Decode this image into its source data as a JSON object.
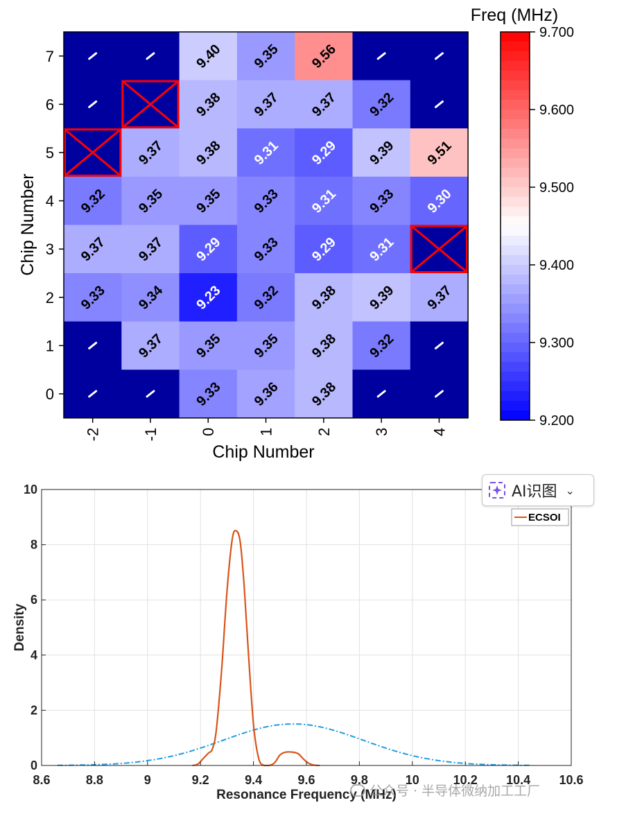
{
  "chart_data": [
    {
      "type": "heatmap",
      "colorbar_title": "Freq (MHz)",
      "xlabel": "Chip Number",
      "ylabel": "Chip Number",
      "x_categories": [
        "-2",
        "-1",
        "0",
        "1",
        "2",
        "3",
        "4"
      ],
      "y_categories": [
        "0",
        "1",
        "2",
        "3",
        "4",
        "5",
        "6",
        "7"
      ],
      "colorbar_ticks": [
        "9.700",
        "9.600",
        "9.500",
        "9.400",
        "9.300",
        "9.200"
      ],
      "color_range": [
        9.2,
        9.7
      ],
      "colors": {
        "low": "#0000ff",
        "mid": "#ffffff",
        "high": "#ff0000",
        "missing": "#00009e",
        "defect": "#ff0000",
        "missing_mark": "#ffffff"
      },
      "missing_label": "-",
      "rows_top_to_bottom": [
        {
          "y": "7",
          "values": [
            "-",
            "-",
            "9.40",
            "9.35",
            "9.56",
            "-",
            "-"
          ]
        },
        {
          "y": "6",
          "values": [
            "-",
            "X",
            "9.38",
            "9.37",
            "9.37",
            "9.32",
            "-"
          ]
        },
        {
          "y": "5",
          "values": [
            "X",
            "9.37",
            "9.38",
            "9.31",
            "9.29",
            "9.39",
            "9.51"
          ]
        },
        {
          "y": "4",
          "values": [
            "9.32",
            "9.35",
            "9.35",
            "9.33",
            "9.31",
            "9.33",
            "9.30"
          ]
        },
        {
          "y": "3",
          "values": [
            "9.37",
            "9.37",
            "9.29",
            "9.33",
            "9.29",
            "9.31",
            "X"
          ]
        },
        {
          "y": "2",
          "values": [
            "9.33",
            "9.34",
            "9.23",
            "9.32",
            "9.38",
            "9.39",
            "9.37"
          ]
        },
        {
          "y": "1",
          "values": [
            "-",
            "9.37",
            "9.35",
            "9.35",
            "9.38",
            "9.32",
            "-"
          ]
        },
        {
          "y": "0",
          "values": [
            "-",
            "-",
            "9.33",
            "9.36",
            "9.38",
            "-",
            "-"
          ]
        }
      ]
    },
    {
      "type": "line",
      "xlabel": "Resonance Frequency (MHz)",
      "ylabel": "Density",
      "xlim": [
        8.6,
        10.6
      ],
      "ylim": [
        0,
        10
      ],
      "x_ticks": [
        "8.6",
        "8.8",
        "9",
        "9.2",
        "9.4",
        "9.6",
        "9.8",
        "10",
        "10.2",
        "10.4",
        "10.6"
      ],
      "y_ticks": [
        "0",
        "2",
        "4",
        "6",
        "8",
        "10"
      ],
      "grid": true,
      "legend_position": "top-right",
      "series": [
        {
          "name": "ECSOI",
          "color": "#d95319",
          "style": "solid",
          "x": [
            9.17,
            9.19,
            9.21,
            9.23,
            9.245,
            9.26,
            9.28,
            9.3,
            9.32,
            9.335,
            9.35,
            9.365,
            9.38,
            9.4,
            9.42,
            9.44,
            9.46,
            9.48,
            9.5,
            9.52,
            9.55,
            9.57,
            9.59,
            9.61,
            9.63,
            9.65
          ],
          "y": [
            0.0,
            0.05,
            0.25,
            0.45,
            0.6,
            1.3,
            3.5,
            6.3,
            8.2,
            8.5,
            8.1,
            6.5,
            4.2,
            1.5,
            0.25,
            0.0,
            0.0,
            0.1,
            0.38,
            0.48,
            0.48,
            0.42,
            0.22,
            0.07,
            0.01,
            0.0
          ]
        },
        {
          "name": "",
          "color": "#1e9be0",
          "style": "dash-dot",
          "mean": 9.55,
          "std": 0.265,
          "x_range": [
            8.66,
            10.45
          ]
        }
      ]
    }
  ],
  "ui": {
    "ai_button_label": "AI识图",
    "watermark_text": "公众号 · 半导体微纳加工工厂"
  }
}
